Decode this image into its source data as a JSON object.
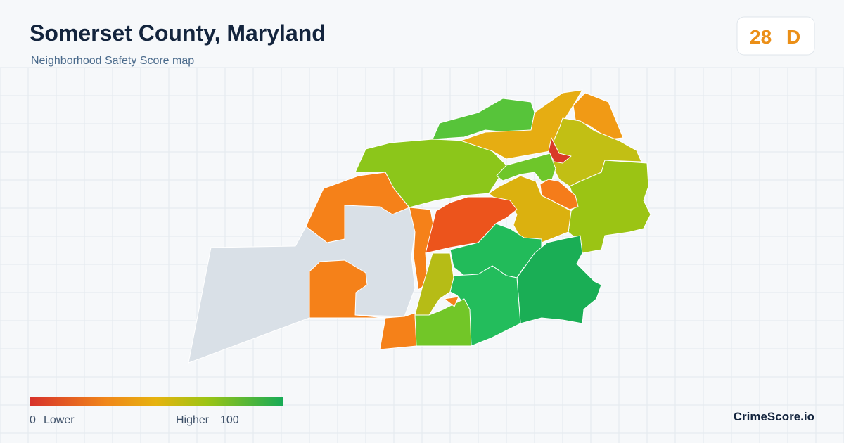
{
  "header": {
    "title": "Somerset County, Maryland",
    "subtitle": "Neighborhood Safety Score map"
  },
  "score": {
    "value": 28,
    "grade": "D"
  },
  "legend": {
    "min": 0,
    "min_label": "Lower",
    "max_label": "Higher",
    "max": 100
  },
  "brand": "CrimeScore.io"
}
